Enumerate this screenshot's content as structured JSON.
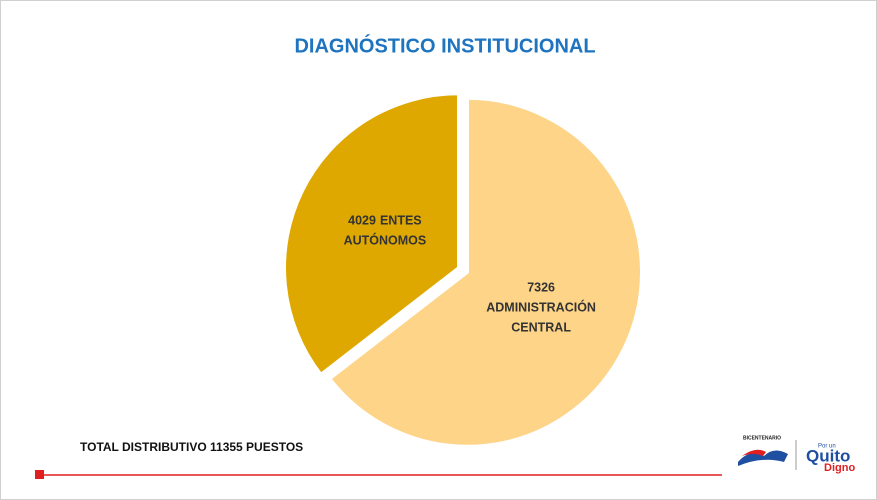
{
  "chart_data": {
    "type": "pie",
    "title": "DIAGNÓSTICO INSTITUCIONAL",
    "categories": [
      "ADMINISTRACIÓN CENTRAL",
      "ENTES AUTÓNOMOS"
    ],
    "values": [
      7326,
      4029
    ],
    "colors": [
      "#fdd488",
      "#dfa800"
    ],
    "footer_text": "TOTAL DISTRIBUTIVO 11355 PUESTOS",
    "logos": [
      "BICENTENARIO",
      "Por un",
      "Quito",
      "Digno"
    ]
  }
}
